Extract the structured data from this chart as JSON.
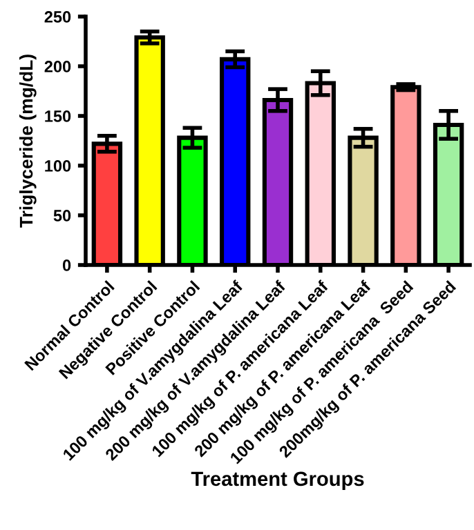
{
  "chart_data": {
    "type": "bar",
    "xlabel": "Treatment Groups",
    "ylabel": "Triglyceride (mg/dL)",
    "categories": [
      "Normal Control",
      "Negative Control",
      "Positive Control",
      "100 mg/kg of V.amygdalina Leaf",
      "200 mg/kg of V.amygdalina Leaf",
      "100 mg/kg of P. americana Leaf",
      "200 mg/kg of P. americana Leaf",
      "100 mg/kg of P. americana  Seed",
      "200mg/kg of P. americana Seed"
    ],
    "values": [
      122,
      229,
      128,
      207,
      166,
      183,
      128,
      179,
      141
    ],
    "errors": [
      8,
      6,
      10,
      8,
      11,
      12,
      9,
      3,
      14
    ],
    "colors": [
      "#ff4040",
      "#ffff00",
      "#00ff00",
      "#0000ff",
      "#9a2fd0",
      "#ffd0d8",
      "#e0d8a0",
      "#ff9a9a",
      "#a0f0a0"
    ],
    "ylim": [
      0,
      250
    ],
    "yticks": [
      0,
      50,
      100,
      150,
      200,
      250
    ],
    "grid": false,
    "legend": false
  }
}
